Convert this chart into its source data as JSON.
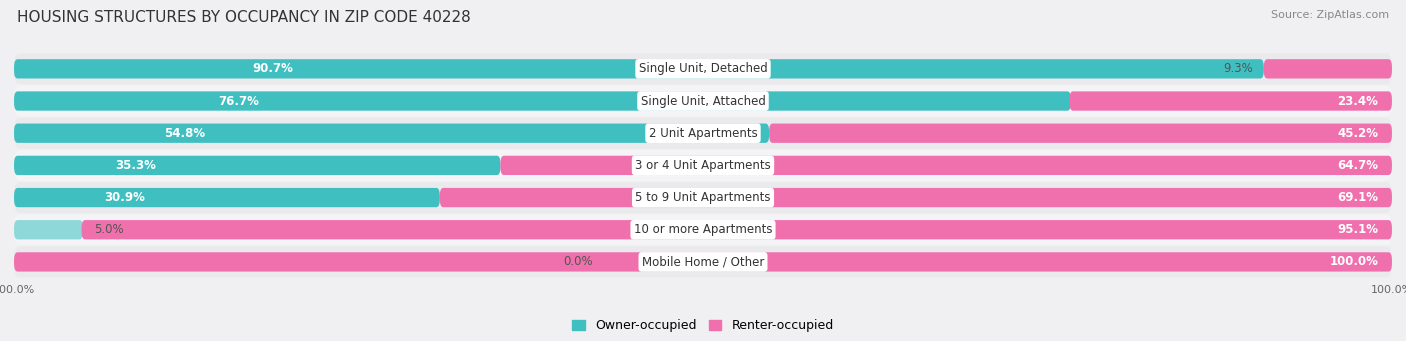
{
  "title": "HOUSING STRUCTURES BY OCCUPANCY IN ZIP CODE 40228",
  "source": "Source: ZipAtlas.com",
  "categories": [
    "Single Unit, Detached",
    "Single Unit, Attached",
    "2 Unit Apartments",
    "3 or 4 Unit Apartments",
    "5 to 9 Unit Apartments",
    "10 or more Apartments",
    "Mobile Home / Other"
  ],
  "owner_pct": [
    90.7,
    76.7,
    54.8,
    35.3,
    30.9,
    5.0,
    0.0
  ],
  "renter_pct": [
    9.3,
    23.4,
    45.2,
    64.7,
    69.1,
    95.1,
    100.0
  ],
  "owner_color": "#40BFC1",
  "renter_color": "#F06FAD",
  "owner_color_light": "#8ED8DA",
  "bg_color": "#F0F0F2",
  "row_bg_even": "#EAEAED",
  "row_bg_odd": "#F4F4F6",
  "title_fontsize": 11,
  "label_fontsize": 8.5,
  "tick_fontsize": 8,
  "source_fontsize": 8,
  "legend_fontsize": 9
}
